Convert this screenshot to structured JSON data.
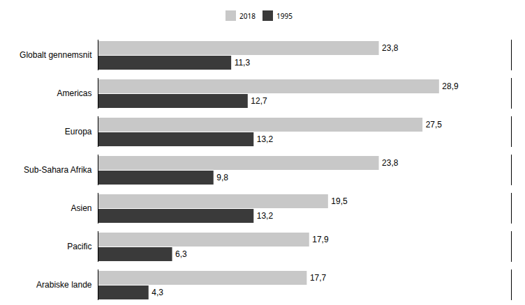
{
  "chart_data": {
    "type": "bar",
    "orientation": "horizontal",
    "categories": [
      "Globalt gennemsnit",
      "Americas",
      "Europa",
      "Sub-Sahara Afrika",
      "Asien",
      "Pacific",
      "Arabiske lande"
    ],
    "series": [
      {
        "name": "2018",
        "color": "#c8c8c8",
        "values": [
          23.8,
          28.9,
          27.5,
          23.8,
          19.5,
          17.9,
          17.7
        ],
        "value_labels": [
          "23,8",
          "28,9",
          "27,5",
          "23,8",
          "19,5",
          "17,9",
          "17,7"
        ]
      },
      {
        "name": "1995",
        "color": "#3a3a3a",
        "values": [
          11.3,
          12.7,
          13.2,
          9.8,
          13.2,
          6.3,
          4.3
        ],
        "value_labels": [
          "11,3",
          "12,7",
          "13,2",
          "9,8",
          "13,2",
          "6,3",
          "4,3"
        ]
      }
    ],
    "xlim": [
      0,
      35
    ],
    "xticks": [],
    "data_labels": true,
    "tick_labels": "y",
    "legend": "top",
    "grid": false
  }
}
